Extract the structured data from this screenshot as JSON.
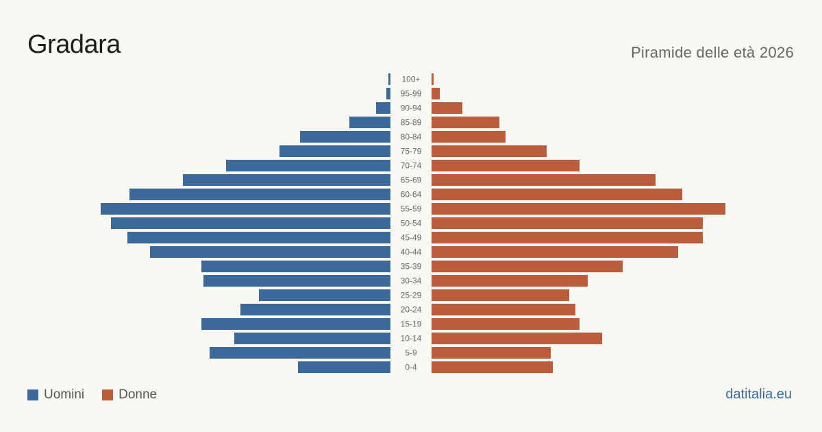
{
  "header": {
    "title": "Gradara",
    "subtitle": "Piramide delle età 2026"
  },
  "legend": [
    {
      "label": "Uomini",
      "color": "#3b6a9a"
    },
    {
      "label": "Donne",
      "color": "#bb5c3c"
    }
  ],
  "footer": {
    "source": "datitalia.eu"
  },
  "chart_data": {
    "type": "bar",
    "orientation": "horizontal-population-pyramid",
    "categories": [
      "100+",
      "95-99",
      "90-94",
      "85-89",
      "80-84",
      "75-79",
      "70-74",
      "65-69",
      "60-64",
      "55-59",
      "50-54",
      "45-49",
      "40-44",
      "35-39",
      "30-34",
      "25-29",
      "20-24",
      "15-19",
      "10-14",
      "5-9",
      "0-4"
    ],
    "series": [
      {
        "name": "Uomini",
        "color": "#3b6a9a",
        "values": [
          1,
          2,
          7,
          20,
          44,
          54,
          80,
          101,
          127,
          141,
          136,
          128,
          117,
          92,
          91,
          64,
          73,
          92,
          76,
          88,
          45
        ]
      },
      {
        "name": "Donne",
        "color": "#bb5c3c",
        "values": [
          1,
          4,
          15,
          33,
          36,
          56,
          72,
          109,
          122,
          143,
          132,
          132,
          120,
          93,
          76,
          67,
          70,
          72,
          83,
          58,
          59
        ]
      }
    ],
    "grid": false,
    "legend_position": "bottom-left"
  }
}
